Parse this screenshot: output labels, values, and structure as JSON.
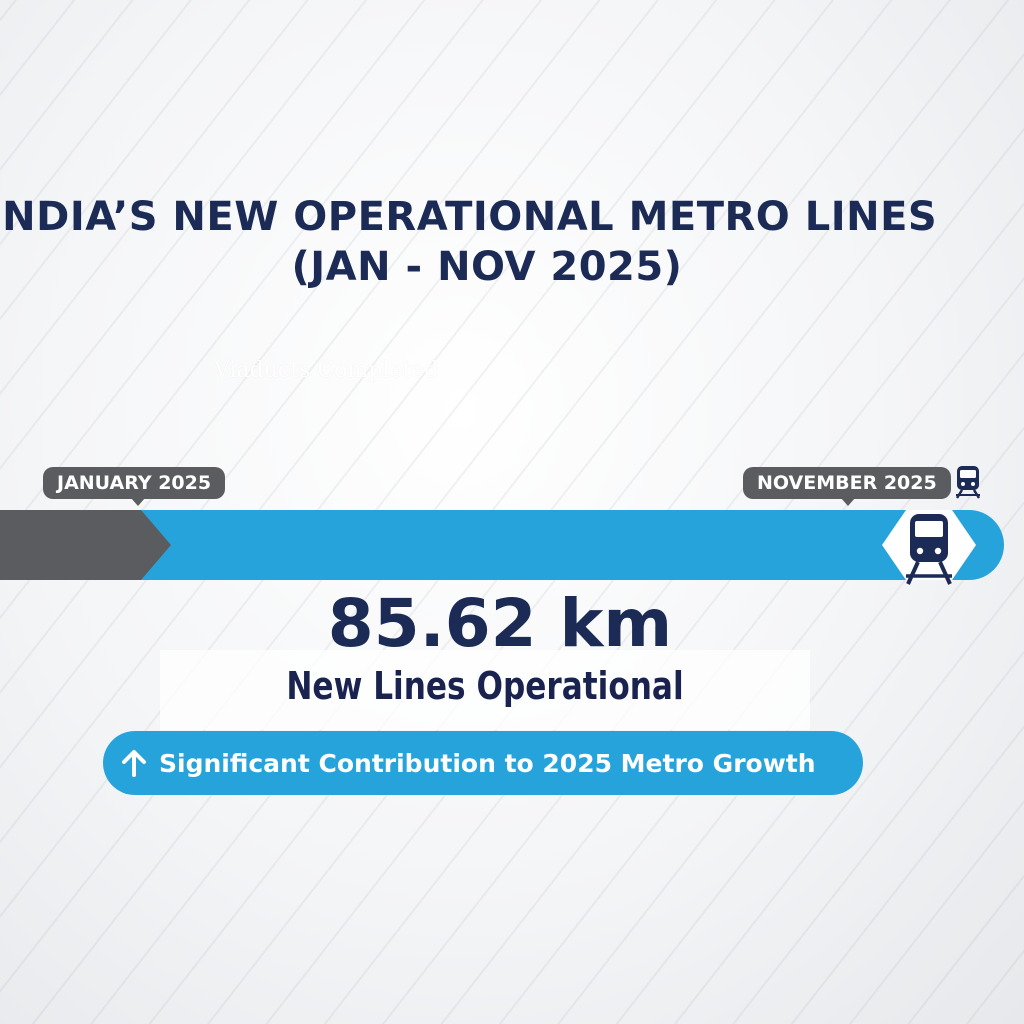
{
  "title": {
    "line1": "INDIA’S NEW OPERATIONAL METRO LINES",
    "line2": "(JAN - NOV 2025)"
  },
  "ghost_label": "Viaducts Completed",
  "timeline": {
    "start_label": "JANUARY 2025",
    "end_label": "NOVEMBER 2025",
    "progress_fraction": 0.14
  },
  "stat": {
    "value": "85.62 km",
    "label": "New Lines Operational"
  },
  "banner": {
    "text": "Significant Contribution to 2025 Metro Growth",
    "icon": "arrow-up-icon"
  },
  "icons": [
    "train-icon",
    "arrow-up-icon"
  ],
  "colors": {
    "navy": "#1c2b55",
    "blue": "#27a3dc",
    "gray": "#5a5c60"
  }
}
